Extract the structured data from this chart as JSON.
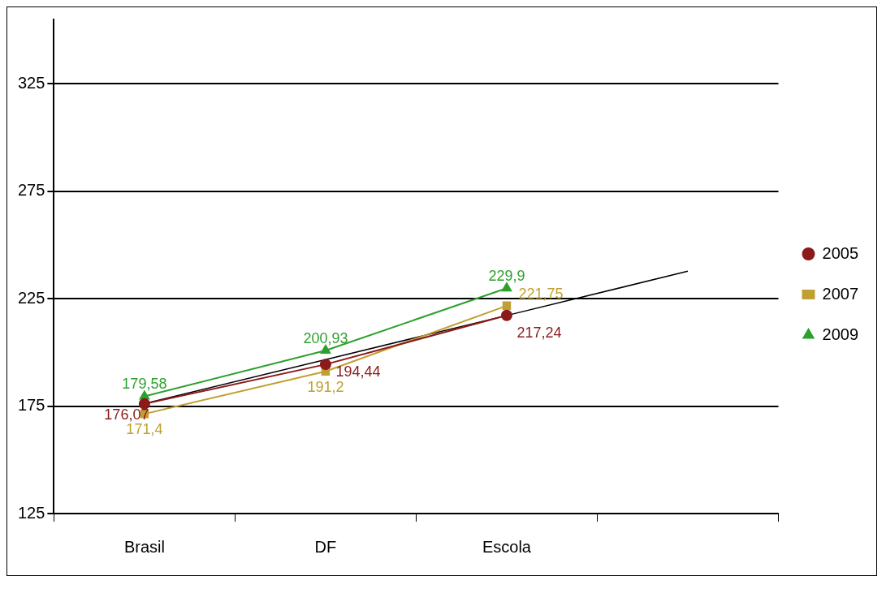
{
  "chart_data": {
    "type": "line",
    "categories": [
      "Brasil",
      "DF",
      "Escola",
      null
    ],
    "series": [
      {
        "name": "2005",
        "color": "#8b1a1a",
        "marker": "circle",
        "values": [
          176.07,
          194.44,
          217.24,
          null
        ],
        "value_labels": [
          "176,07",
          "194,44",
          "217,24",
          null
        ]
      },
      {
        "name": "2007",
        "color": "#c0a030",
        "marker": "square",
        "values": [
          171.4,
          191.2,
          221.75,
          null
        ],
        "value_labels": [
          "171,4",
          "191,2",
          "221,75",
          null
        ]
      },
      {
        "name": "2009",
        "color": "#2ca02c",
        "marker": "triangle",
        "values": [
          179.58,
          200.93,
          229.9,
          null
        ],
        "value_labels": [
          "179,58",
          "200,93",
          "229,9",
          null
        ]
      },
      {
        "type": "line",
        "color": "#000000",
        "marker": "none",
        "values": [
          176.2,
          196.7,
          217.2,
          237.8
        ]
      }
    ],
    "ylim": [
      125,
      355
    ],
    "yticks": [
      125,
      175,
      225,
      275,
      325
    ],
    "grid": "y",
    "legend": "right"
  }
}
